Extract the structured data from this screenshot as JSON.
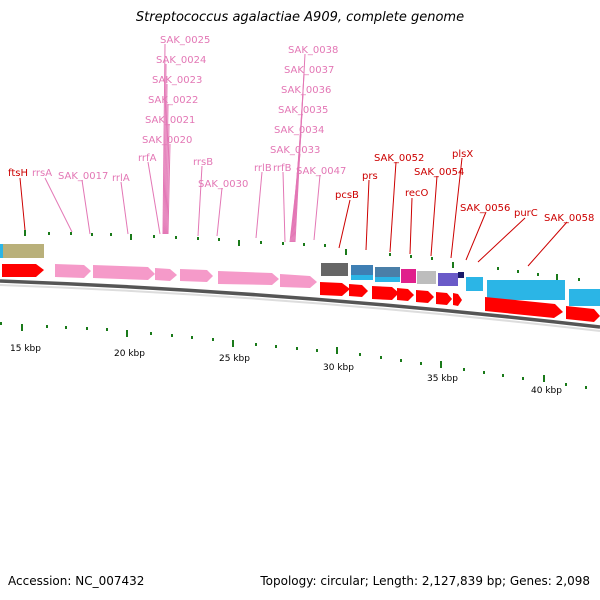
{
  "title": "Streptococcus agalactiae A909, complete genome",
  "accession": "Accession: NC_007432",
  "topology": "Topology: circular; Length: 2,127,839 bp; Genes: 2,098",
  "colors": {
    "rna_label": "#e377b5",
    "cds_label": "#cc0000",
    "cds_arrow": "#ff0000",
    "rna_arrow": "#f59ac9",
    "tick": "#1a7a1a"
  },
  "kbp_labels": [
    "15 kbp",
    "20 kbp",
    "25 kbp",
    "30 kbp",
    "35 kbp",
    "40 kbp"
  ],
  "rna_labels": [
    "SAK_0025",
    "SAK_0024",
    "SAK_0023",
    "SAK_0022",
    "SAK_0021",
    "SAK_0020",
    "SAK_0038",
    "SAK_0037",
    "SAK_0036",
    "SAK_0035",
    "SAK_0034",
    "SAK_0033",
    "rrsA",
    "SAK_0017",
    "rrlA",
    "rrfA",
    "rrsB",
    "SAK_0030",
    "rrlB",
    "rrfB",
    "SAK_0047"
  ],
  "cds_labels": [
    "ftsH",
    "pcsB",
    "prs",
    "SAK_0052",
    "recO",
    "SAK_0054",
    "plsX",
    "SAK_0056",
    "purC",
    "SAK_0058"
  ]
}
